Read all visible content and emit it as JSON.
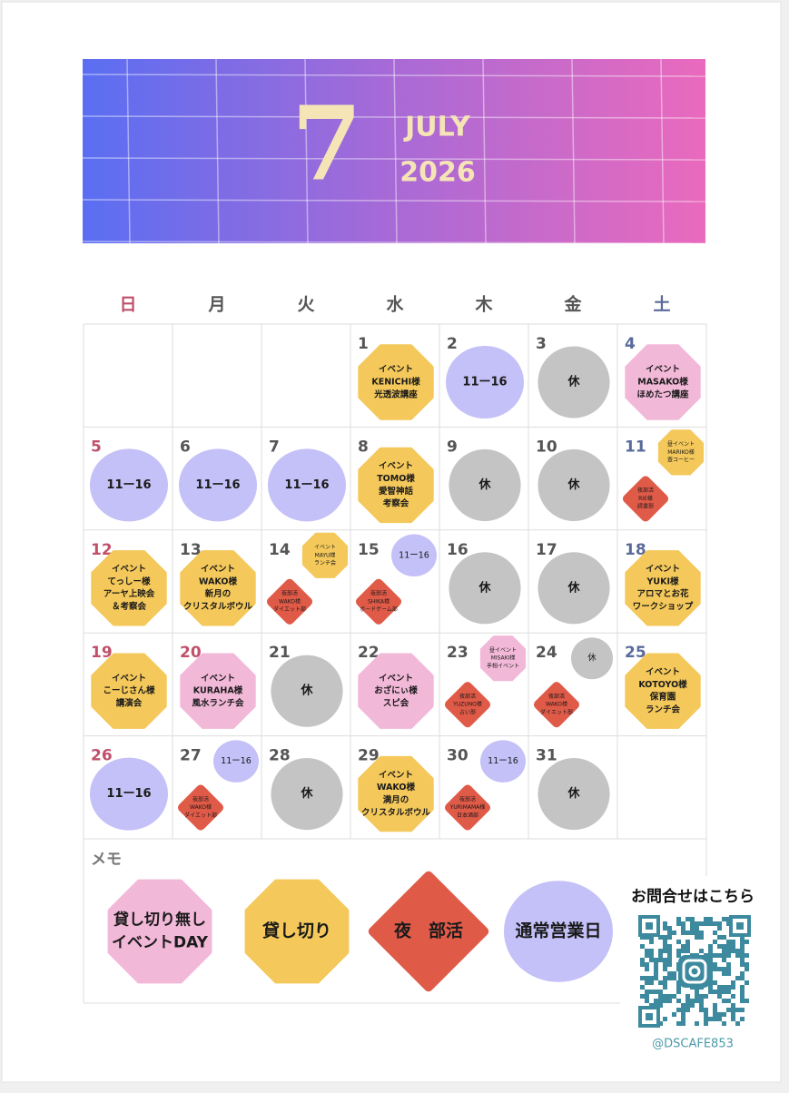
{
  "banner": {
    "month": "7",
    "month_name": "JULY",
    "year": "2026"
  },
  "weekdays": [
    {
      "label": "日",
      "color": "#c0506a"
    },
    {
      "label": "月",
      "color": "#555555"
    },
    {
      "label": "火",
      "color": "#555555"
    },
    {
      "label": "水",
      "color": "#555555"
    },
    {
      "label": "木",
      "color": "#555555"
    },
    {
      "label": "金",
      "color": "#555555"
    },
    {
      "label": "土",
      "color": "#5a6a9a"
    }
  ],
  "weeks": [
    [
      null,
      null,
      null,
      {
        "day": "1",
        "day_color": "#555555",
        "items": [
          {
            "shape": "octagon",
            "color": "#f4c85a",
            "lines": [
              "イベント",
              "KENICHI様",
              "光透波講座"
            ]
          }
        ]
      },
      {
        "day": "2",
        "day_color": "#555555",
        "items": [
          {
            "shape": "blob",
            "color": "#c4c0f8",
            "lines": [
              "11ー16"
            ]
          }
        ]
      },
      {
        "day": "3",
        "day_color": "#555555",
        "items": [
          {
            "shape": "circle",
            "color": "#c4c4c4",
            "lines": [
              "休"
            ]
          }
        ]
      },
      {
        "day": "4",
        "day_color": "#5a6a9a",
        "items": [
          {
            "shape": "octagon",
            "color": "#f2b8d8",
            "lines": [
              "イベント",
              "MASAKO様",
              "ほめたつ講座"
            ]
          }
        ]
      }
    ],
    [
      {
        "day": "5",
        "day_color": "#c0506a",
        "items": [
          {
            "shape": "blob",
            "color": "#c4c0f8",
            "lines": [
              "11ー16"
            ]
          }
        ]
      },
      {
        "day": "6",
        "day_color": "#555555",
        "items": [
          {
            "shape": "blob",
            "color": "#c4c0f8",
            "lines": [
              "11ー16"
            ]
          }
        ]
      },
      {
        "day": "7",
        "day_color": "#555555",
        "items": [
          {
            "shape": "blob",
            "color": "#c4c0f8",
            "lines": [
              "11ー16"
            ]
          }
        ]
      },
      {
        "day": "8",
        "day_color": "#555555",
        "items": [
          {
            "shape": "octagon",
            "color": "#f4c85a",
            "lines": [
              "イベント",
              "TOMO様",
              "愛智神話",
              "考察会"
            ]
          }
        ]
      },
      {
        "day": "9",
        "day_color": "#555555",
        "items": [
          {
            "shape": "circle",
            "color": "#c4c4c4",
            "lines": [
              "休"
            ]
          }
        ]
      },
      {
        "day": "10",
        "day_color": "#555555",
        "items": [
          {
            "shape": "circle",
            "color": "#c4c4c4",
            "lines": [
              "休"
            ]
          }
        ]
      },
      {
        "day": "11",
        "day_color": "#5a6a9a",
        "items": [
          {
            "shape": "octagon",
            "color": "#f4c85a",
            "lines": [
              "昼イベント",
              "MARIKO様",
              "壺コーヒー"
            ]
          },
          {
            "shape": "diamond",
            "color": "#e05a48",
            "lines": [
              "夜部活",
              "RIE様",
              "読書部"
            ]
          }
        ]
      }
    ],
    [
      {
        "day": "12",
        "day_color": "#c0506a",
        "items": [
          {
            "shape": "octagon",
            "color": "#f4c85a",
            "lines": [
              "イベント",
              "てっしー様",
              "アーヤ上映会",
              "＆考察会"
            ]
          }
        ]
      },
      {
        "day": "13",
        "day_color": "#555555",
        "items": [
          {
            "shape": "octagon",
            "color": "#f4c85a",
            "lines": [
              "イベント",
              "WAKO様",
              "新月の",
              "クリスタルボウル"
            ]
          }
        ]
      },
      {
        "day": "14",
        "day_color": "#555555",
        "items": [
          {
            "shape": "octagon",
            "color": "#f4c85a",
            "lines": [
              "イベント",
              "MAYU様",
              "ランチ会"
            ]
          },
          {
            "shape": "diamond",
            "color": "#e05a48",
            "lines": [
              "夜部活",
              "WAKO様",
              "ダイエット部"
            ]
          }
        ]
      },
      {
        "day": "15",
        "day_color": "#555555",
        "items": [
          {
            "shape": "blob",
            "color": "#c4c0f8",
            "lines": [
              "11ー16"
            ]
          },
          {
            "shape": "diamond",
            "color": "#e05a48",
            "lines": [
              "夜部活",
              "SHIKA様",
              "ボードゲーム部"
            ]
          }
        ]
      },
      {
        "day": "16",
        "day_color": "#555555",
        "items": [
          {
            "shape": "circle",
            "color": "#c4c4c4",
            "lines": [
              "休"
            ]
          }
        ]
      },
      {
        "day": "17",
        "day_color": "#555555",
        "items": [
          {
            "shape": "circle",
            "color": "#c4c4c4",
            "lines": [
              "休"
            ]
          }
        ]
      },
      {
        "day": "18",
        "day_color": "#5a6a9a",
        "items": [
          {
            "shape": "octagon",
            "color": "#f4c85a",
            "lines": [
              "イベント",
              "YUKI様",
              "アロマとお花",
              "ワークショップ"
            ]
          }
        ]
      }
    ],
    [
      {
        "day": "19",
        "day_color": "#c0506a",
        "items": [
          {
            "shape": "octagon",
            "color": "#f4c85a",
            "lines": [
              "イベント",
              "こーじさん様",
              "講演会"
            ]
          }
        ]
      },
      {
        "day": "20",
        "day_color": "#c0506a",
        "items": [
          {
            "shape": "octagon",
            "color": "#f2b8d8",
            "lines": [
              "イベント",
              "KURAHA様",
              "風水ランチ会"
            ]
          }
        ]
      },
      {
        "day": "21",
        "day_color": "#555555",
        "items": [
          {
            "shape": "circle",
            "color": "#c4c4c4",
            "lines": [
              "休"
            ]
          }
        ]
      },
      {
        "day": "22",
        "day_color": "#555555",
        "items": [
          {
            "shape": "octagon",
            "color": "#f2b8d8",
            "lines": [
              "イベント",
              "おざにぃ様",
              "スピ会"
            ]
          }
        ]
      },
      {
        "day": "23",
        "day_color": "#555555",
        "items": [
          {
            "shape": "octagon",
            "color": "#f2b8d8",
            "lines": [
              "昼イベント",
              "MISAKI様",
              "手相イベント"
            ]
          },
          {
            "shape": "diamond",
            "color": "#e05a48",
            "lines": [
              "夜部活",
              "YUZUNO様",
              "占い部"
            ]
          }
        ]
      },
      {
        "day": "24",
        "day_color": "#555555",
        "items": [
          {
            "shape": "circle",
            "color": "#c4c4c4",
            "lines": [
              "休"
            ]
          },
          {
            "shape": "diamond",
            "color": "#e05a48",
            "lines": [
              "夜部活",
              "WAKO様",
              "ダイエット部"
            ]
          }
        ]
      },
      {
        "day": "25",
        "day_color": "#5a6a9a",
        "items": [
          {
            "shape": "octagon",
            "color": "#f4c85a",
            "lines": [
              "イベント",
              "KOTOYO様",
              "保育園",
              "ランチ会"
            ]
          }
        ]
      }
    ],
    [
      {
        "day": "26",
        "day_color": "#c0506a",
        "items": [
          {
            "shape": "blob",
            "color": "#c4c0f8",
            "lines": [
              "11ー16"
            ]
          }
        ]
      },
      {
        "day": "27",
        "day_color": "#555555",
        "items": [
          {
            "shape": "blob",
            "color": "#c4c0f8",
            "lines": [
              "11ー16"
            ]
          },
          {
            "shape": "diamond",
            "color": "#e05a48",
            "lines": [
              "夜部活",
              "WAKO様",
              "ダイエット部"
            ]
          }
        ]
      },
      {
        "day": "28",
        "day_color": "#555555",
        "items": [
          {
            "shape": "circle",
            "color": "#c4c4c4",
            "lines": [
              "休"
            ]
          }
        ]
      },
      {
        "day": "29",
        "day_color": "#555555",
        "items": [
          {
            "shape": "octagon",
            "color": "#f4c85a",
            "lines": [
              "イベント",
              "WAKO様",
              "満月の",
              "クリスタルボウル"
            ]
          }
        ]
      },
      {
        "day": "30",
        "day_color": "#555555",
        "items": [
          {
            "shape": "blob",
            "color": "#c4c0f8",
            "lines": [
              "11ー16"
            ]
          },
          {
            "shape": "diamond",
            "color": "#e05a48",
            "lines": [
              "夜部活",
              "YURIMAMA様",
              "日本酒部"
            ]
          }
        ]
      },
      {
        "day": "31",
        "day_color": "#555555",
        "items": [
          {
            "shape": "circle",
            "color": "#c4c4c4",
            "lines": [
              "休"
            ]
          }
        ]
      },
      null
    ]
  ],
  "memo": {
    "label": "メモ",
    "legend": [
      {
        "shape": "octagon",
        "color": "#f2b8d8",
        "lines": [
          "貸し切り無し",
          "イベントDAY"
        ]
      },
      {
        "shape": "octagon",
        "color": "#f4c85a",
        "lines": [
          "貸し切り"
        ]
      },
      {
        "shape": "diamond",
        "color": "#e05a48",
        "lines": [
          "夜　部活"
        ]
      },
      {
        "shape": "blob",
        "color": "#c4c0f8",
        "lines": [
          "通常営業日"
        ]
      }
    ]
  },
  "contact": {
    "text": "お問合せはこちら",
    "handle": "@DSCAFE853"
  }
}
